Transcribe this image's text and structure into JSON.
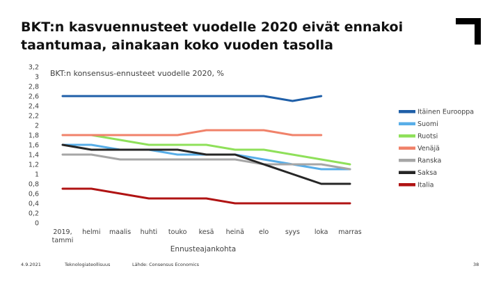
{
  "slide": {
    "title": "BKT:n kasvuennusteet vuodelle 2020 eivät ennakoi taantumaa, ainakaan koko vuoden tasolla",
    "footer_date": "4.9.2021",
    "footer_org": "Teknologiateollisuus",
    "footer_source": "Lähde: Consensus Economics",
    "page_number": "38"
  },
  "chart_data": {
    "type": "line",
    "title": "BKT:n konsensus-ennusteet vuodelle 2020, %",
    "xlabel": "Ennusteajankohta",
    "ylabel": "",
    "ylim": [
      0,
      3.2
    ],
    "yticks": [
      "0",
      "0,2",
      "0,4",
      "0,6",
      "0,8",
      "1",
      "1,2",
      "1,4",
      "1,6",
      "1,8",
      "2",
      "2,2",
      "2,4",
      "2,6",
      "2,8",
      "3",
      "3,2"
    ],
    "categories": [
      "2019, tammi",
      "helmi",
      "maalis",
      "huhti",
      "touko",
      "kesä",
      "heinä",
      "elo",
      "syys",
      "loka",
      "marras"
    ],
    "grid": false,
    "legend_position": "right",
    "series": [
      {
        "name": "Itäinen Eurooppa",
        "color": "#1f5fa8",
        "values": [
          2.6,
          2.6,
          2.6,
          2.6,
          2.6,
          2.6,
          2.6,
          2.6,
          2.5,
          2.6,
          null
        ]
      },
      {
        "name": "Suomi",
        "color": "#58aee8",
        "values": [
          1.6,
          1.6,
          1.5,
          1.5,
          1.4,
          1.4,
          1.4,
          1.3,
          1.2,
          1.1,
          1.1
        ]
      },
      {
        "name": "Ruotsi",
        "color": "#8fe05a",
        "values": [
          1.8,
          1.8,
          1.7,
          1.6,
          1.6,
          1.6,
          1.5,
          1.5,
          1.4,
          1.3,
          1.2
        ]
      },
      {
        "name": "Venäjä",
        "color": "#f0826a",
        "values": [
          1.8,
          1.8,
          1.8,
          1.8,
          1.8,
          1.9,
          1.9,
          1.9,
          1.8,
          1.8,
          null
        ]
      },
      {
        "name": "Ranska",
        "color": "#a6a6a6",
        "values": [
          1.4,
          1.4,
          1.3,
          1.3,
          1.3,
          1.3,
          1.3,
          1.2,
          1.2,
          1.2,
          1.1
        ]
      },
      {
        "name": "Saksa",
        "color": "#262626",
        "values": [
          1.6,
          1.5,
          1.5,
          1.5,
          1.5,
          1.4,
          1.4,
          1.2,
          1.0,
          0.8,
          0.8
        ]
      },
      {
        "name": "Italia",
        "color": "#b01313",
        "values": [
          0.7,
          0.7,
          0.6,
          0.5,
          0.5,
          0.5,
          0.4,
          0.4,
          0.4,
          0.4,
          0.4
        ]
      }
    ]
  }
}
